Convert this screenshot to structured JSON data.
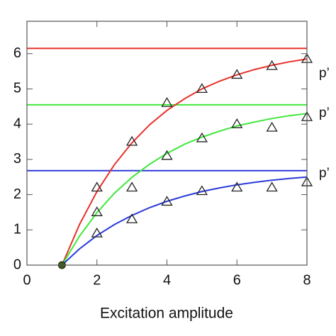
{
  "chart_data": {
    "type": "line",
    "x_label": "Excitation amplitude",
    "xlim": [
      0,
      8
    ],
    "ylim": [
      0,
      6.92
    ],
    "xticks": [
      0,
      2,
      4,
      6,
      8
    ],
    "yticks": [
      0,
      1,
      2,
      3,
      4,
      5,
      6
    ],
    "x": [
      1,
      1.5,
      2,
      2.5,
      3,
      3.5,
      4,
      4.5,
      5,
      5.5,
      6,
      6.5,
      7,
      7.5,
      8
    ],
    "series": [
      {
        "color": "#e8302a",
        "values": [
          0,
          1.15,
          2.09,
          2.85,
          3.47,
          3.98,
          4.39,
          4.72,
          5.0,
          5.22,
          5.4,
          5.55,
          5.67,
          5.77,
          5.85
        ]
      },
      {
        "color": "#3ee83a",
        "values": [
          0,
          0.82,
          1.49,
          2.04,
          2.49,
          2.86,
          3.17,
          3.43,
          3.63,
          3.8,
          3.95,
          4.06,
          4.16,
          4.24,
          4.3
        ]
      },
      {
        "color": "#2a3ad8",
        "values": [
          0,
          0.46,
          0.84,
          1.15,
          1.41,
          1.63,
          1.81,
          1.96,
          2.09,
          2.19,
          2.28,
          2.35,
          2.41,
          2.46,
          2.5
        ]
      }
    ],
    "levels": [
      {
        "value": 6.15,
        "color": "#e8302a",
        "label": "p’"
      },
      {
        "value": 4.55,
        "color": "#3ee83a",
        "label": "p’"
      },
      {
        "value": 2.68,
        "color": "#2a3ad8",
        "label": "p’"
      }
    ],
    "markers": {
      "x": [
        2,
        3,
        4,
        5,
        6,
        7,
        8
      ],
      "series": [
        {
          "values": [
            2.2,
            3.5,
            4.6,
            5.0,
            5.4,
            5.65,
            5.85
          ]
        },
        {
          "values": [
            1.5,
            2.2,
            3.1,
            3.6,
            4.0,
            3.9,
            4.2
          ]
        },
        {
          "values": [
            0.9,
            1.3,
            1.8,
            2.1,
            2.2,
            2.2,
            2.35
          ]
        }
      ]
    },
    "start_point": {
      "x": 1,
      "y": 0,
      "color": "#3d5a1e"
    }
  }
}
